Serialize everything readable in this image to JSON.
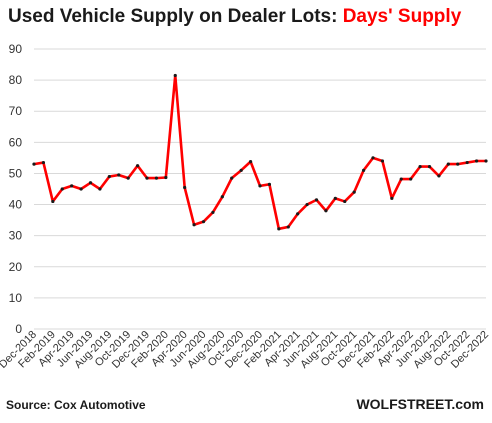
{
  "header": {
    "title_main": "Used Vehicle Supply on Dealer Lots: ",
    "title_accent": "Days' Supply"
  },
  "footer": {
    "source": "Source: Cox Automotive",
    "brand": "WOLFSTREET.com"
  },
  "colors": {
    "line": "#ff0000",
    "marker": "#1a1a1a",
    "grid": "#d9d9d9",
    "accent_text": "#ff0000"
  },
  "chart_data": {
    "type": "line",
    "title": "Used Vehicle Supply on Dealer Lots: Days' Supply",
    "xlabel": "",
    "ylabel": "",
    "ylim": [
      0,
      90
    ],
    "yticks": [
      0,
      10,
      20,
      30,
      40,
      50,
      60,
      70,
      80,
      90
    ],
    "grid": "horizontal",
    "legend": "none",
    "x_tick_labels": [
      "Dec-2018",
      "Feb-2019",
      "Apr-2019",
      "Jun-2019",
      "Aug-2019",
      "Oct-2019",
      "Dec-2019",
      "Feb-2020",
      "Apr-2020",
      "Jun-2020",
      "Aug-2020",
      "Oct-2020",
      "Dec-2020",
      "Feb-2021",
      "Apr-2021",
      "Jun-2021",
      "Aug-2021",
      "Oct-2021",
      "Dec-2021",
      "Feb-2022",
      "Apr-2022",
      "Jun-2022",
      "Aug-2022",
      "Oct-2022",
      "Dec-2022"
    ],
    "x": [
      "Dec-2018",
      "Jan-2019",
      "Feb-2019",
      "Mar-2019",
      "Apr-2019",
      "May-2019",
      "Jun-2019",
      "Jul-2019",
      "Aug-2019",
      "Sep-2019",
      "Oct-2019",
      "Nov-2019",
      "Dec-2019",
      "Jan-2020",
      "Feb-2020",
      "Mar-2020",
      "Apr-2020",
      "May-2020",
      "Jun-2020",
      "Jul-2020",
      "Aug-2020",
      "Sep-2020",
      "Oct-2020",
      "Nov-2020",
      "Dec-2020",
      "Jan-2021",
      "Feb-2021",
      "Mar-2021",
      "Apr-2021",
      "May-2021",
      "Jun-2021",
      "Jul-2021",
      "Aug-2021",
      "Sep-2021",
      "Oct-2021",
      "Nov-2021",
      "Dec-2021",
      "Jan-2022",
      "Feb-2022",
      "Mar-2022",
      "Apr-2022",
      "May-2022",
      "Jun-2022",
      "Jul-2022",
      "Aug-2022",
      "Sep-2022",
      "Oct-2022",
      "Nov-2022",
      "Dec-2022"
    ],
    "series": [
      {
        "values": [
          53,
          53.5,
          41,
          45,
          46,
          45,
          47,
          45,
          49,
          49.5,
          48.5,
          52.5,
          48.5,
          48.5,
          48.7,
          81.5,
          45.5,
          33.5,
          34.5,
          37.5,
          42.5,
          48.5,
          51,
          53.8,
          46,
          46.5,
          32.2,
          32.8,
          37,
          40,
          41.5,
          38,
          42,
          41,
          44,
          51,
          55,
          54,
          42,
          48.2,
          48.2,
          52.2,
          52.2,
          49.2,
          53,
          53,
          53.5,
          54,
          54
        ]
      }
    ]
  }
}
